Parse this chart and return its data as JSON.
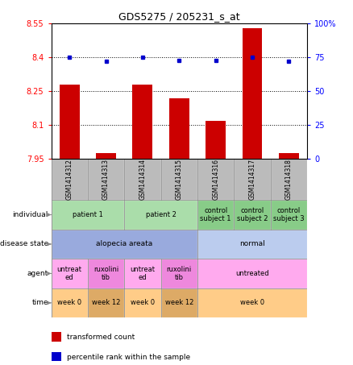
{
  "title": "GDS5275 / 205231_s_at",
  "samples": [
    "GSM1414312",
    "GSM1414313",
    "GSM1414314",
    "GSM1414315",
    "GSM1414316",
    "GSM1414317",
    "GSM1414318"
  ],
  "transformed_count": [
    8.28,
    7.975,
    8.28,
    8.22,
    8.12,
    8.53,
    7.975
  ],
  "percentile_rank": [
    75,
    72,
    75,
    73,
    73,
    75,
    72
  ],
  "ylim_left": [
    7.95,
    8.55
  ],
  "ylim_right": [
    0,
    100
  ],
  "yticks_left": [
    7.95,
    8.1,
    8.25,
    8.4,
    8.55
  ],
  "yticks_right": [
    0,
    25,
    50,
    75,
    100
  ],
  "ytick_labels_right": [
    "0",
    "25",
    "50",
    "75",
    "100%"
  ],
  "hlines": [
    8.1,
    8.25,
    8.4
  ],
  "bar_color": "#cc0000",
  "dot_color": "#0000cc",
  "bar_width": 0.55,
  "individual_row": {
    "groups": [
      {
        "label": "patient 1",
        "start": 0,
        "end": 2,
        "color": "#aaddaa"
      },
      {
        "label": "patient 2",
        "start": 2,
        "end": 4,
        "color": "#aaddaa"
      },
      {
        "label": "control\nsubject 1",
        "start": 4,
        "end": 5,
        "color": "#88cc88"
      },
      {
        "label": "control\nsubject 2",
        "start": 5,
        "end": 6,
        "color": "#88cc88"
      },
      {
        "label": "control\nsubject 3",
        "start": 6,
        "end": 7,
        "color": "#88cc88"
      }
    ]
  },
  "disease_state_row": {
    "groups": [
      {
        "label": "alopecia areata",
        "start": 0,
        "end": 4,
        "color": "#99aadd"
      },
      {
        "label": "normal",
        "start": 4,
        "end": 7,
        "color": "#bbccee"
      }
    ]
  },
  "agent_row": {
    "groups": [
      {
        "label": "untreat\ned",
        "start": 0,
        "end": 1,
        "color": "#ffaaee"
      },
      {
        "label": "ruxolini\ntib",
        "start": 1,
        "end": 2,
        "color": "#ee88dd"
      },
      {
        "label": "untreat\ned",
        "start": 2,
        "end": 3,
        "color": "#ffaaee"
      },
      {
        "label": "ruxolini\ntib",
        "start": 3,
        "end": 4,
        "color": "#ee88dd"
      },
      {
        "label": "untreated",
        "start": 4,
        "end": 7,
        "color": "#ffaaee"
      }
    ]
  },
  "time_row": {
    "groups": [
      {
        "label": "week 0",
        "start": 0,
        "end": 1,
        "color": "#ffcc88"
      },
      {
        "label": "week 12",
        "start": 1,
        "end": 2,
        "color": "#ddaa66"
      },
      {
        "label": "week 0",
        "start": 2,
        "end": 3,
        "color": "#ffcc88"
      },
      {
        "label": "week 12",
        "start": 3,
        "end": 4,
        "color": "#ddaa66"
      },
      {
        "label": "week 0",
        "start": 4,
        "end": 7,
        "color": "#ffcc88"
      }
    ]
  },
  "row_labels": [
    "individual",
    "disease state",
    "agent",
    "time"
  ],
  "sample_bg_color": "#bbbbbb",
  "legend_items": [
    {
      "color": "#cc0000",
      "label": "transformed count"
    },
    {
      "color": "#0000cc",
      "label": "percentile rank within the sample"
    }
  ]
}
